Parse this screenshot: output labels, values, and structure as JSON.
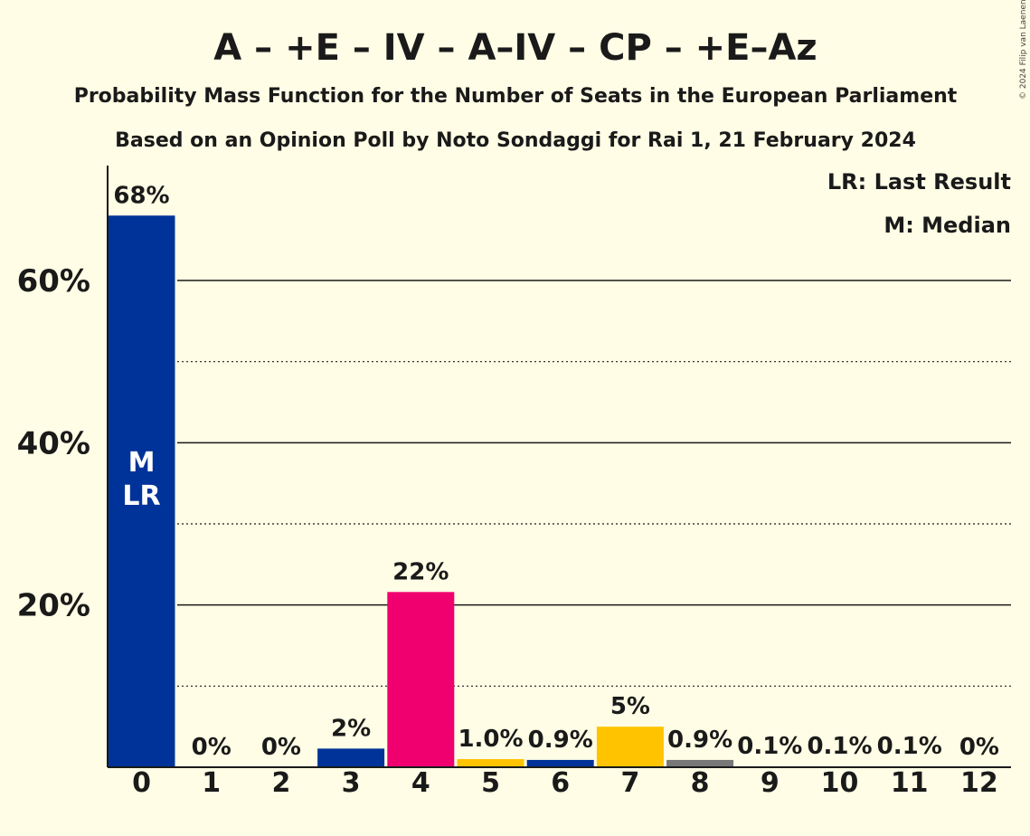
{
  "chart_data": {
    "type": "bar",
    "title": "A – +E – IV – A–IV – CP – +E–Az",
    "subtitle": "Probability Mass Function for the Number of Seats in the European Parliament",
    "source": "Based on an Opinion Poll by Noto Sondaggi for Rai 1, 21 February 2024",
    "copyright": "© 2024 Filip van Laenen",
    "legend": [
      "LR: Last Result",
      "M: Median"
    ],
    "legend_position": "top-right",
    "categories": [
      "0",
      "1",
      "2",
      "3",
      "4",
      "5",
      "6",
      "7",
      "8",
      "9",
      "10",
      "11",
      "12"
    ],
    "values": [
      68,
      0,
      0,
      2.3,
      21.6,
      1.0,
      0.9,
      5.0,
      0.9,
      0.1,
      0.1,
      0.1,
      0
    ],
    "data_labels": [
      "68%",
      "0%",
      "0%",
      "2%",
      "22%",
      "1.0%",
      "0.9%",
      "5%",
      "0.9%",
      "0.1%",
      "0.1%",
      "0.1%",
      "0%"
    ],
    "bar_colors": [
      "#003399",
      "#003399",
      "#003399",
      "#003399",
      "#f0006e",
      "#ffc300",
      "#003399",
      "#ffc300",
      "#777777",
      "#777777",
      "#777777",
      "#777777",
      "#777777"
    ],
    "in_bar_labels": {
      "0": [
        "M",
        "LR"
      ]
    },
    "ylim": [
      0,
      70
    ],
    "yticks": [
      20,
      40,
      60
    ],
    "ytick_labels": [
      "20%",
      "40%",
      "60%"
    ],
    "grid_solid": [
      20,
      40,
      60
    ],
    "grid_dotted": [
      10,
      30,
      50
    ],
    "xlabel": "",
    "ylabel": ""
  }
}
